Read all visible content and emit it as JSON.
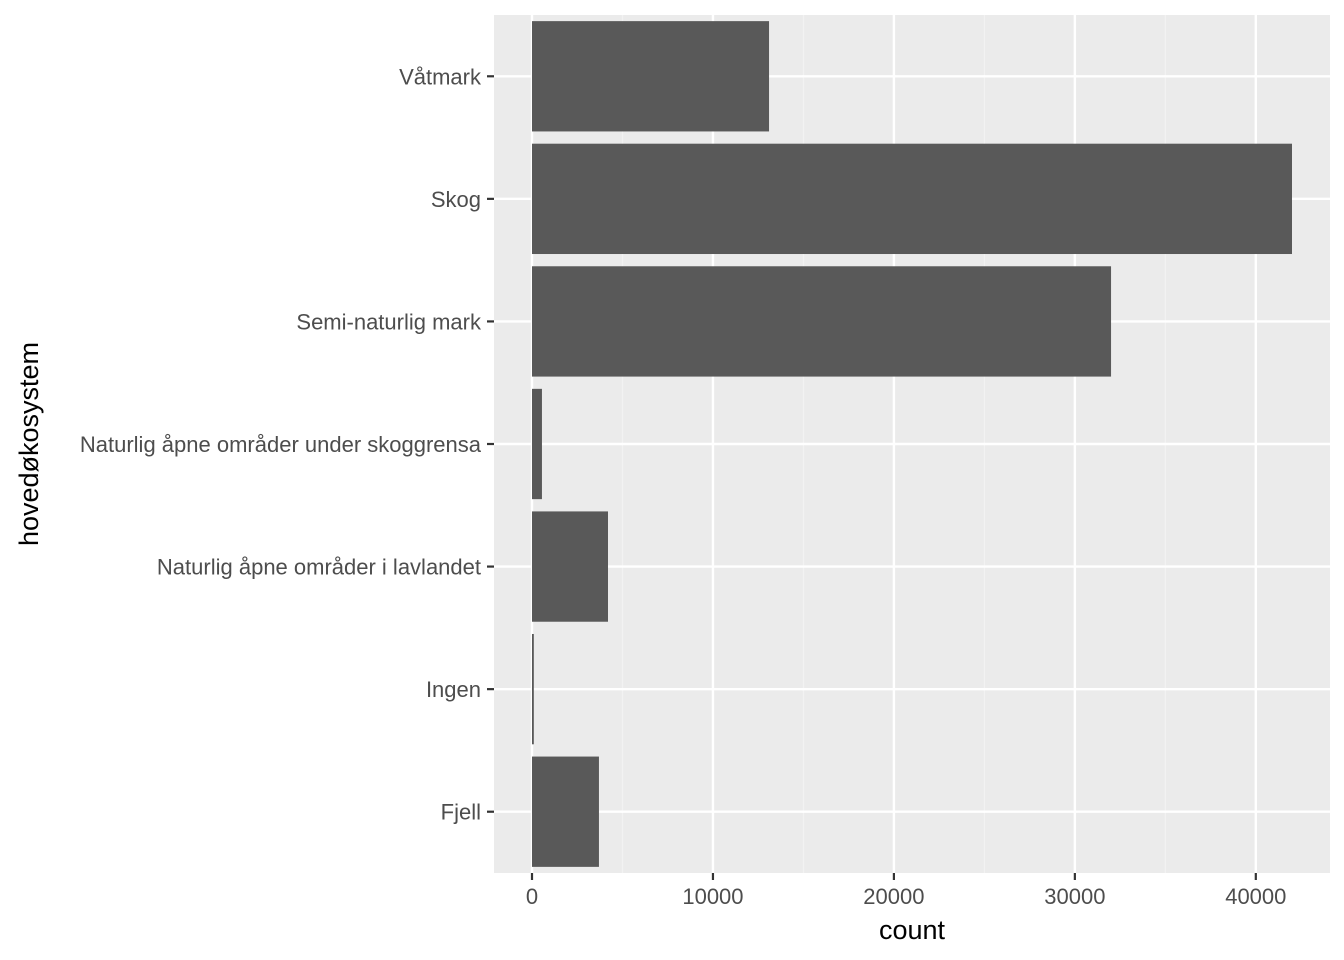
{
  "chart_data": {
    "type": "bar",
    "orientation": "horizontal",
    "categories": [
      "Fjell",
      "Ingen",
      "Naturlig åpne områder i lavlandet",
      "Naturlig åpne områder under skoggrensa",
      "Semi-naturlig mark",
      "Skog",
      "Våtmark"
    ],
    "values": [
      3700,
      100,
      4200,
      550,
      32000,
      42000,
      13100
    ],
    "xlabel": "count",
    "ylabel": "hovedøkosystem",
    "xlim": [
      -2100,
      44100
    ],
    "x_ticks": [
      0,
      10000,
      20000,
      30000,
      40000
    ],
    "x_tick_labels": [
      "0",
      "10000",
      "20000",
      "30000",
      "40000"
    ],
    "grid": true,
    "colors": {
      "bar": "#595959",
      "panel": "#ebebeb",
      "grid_major": "#ffffff",
      "grid_minor": "#f2f2f2",
      "tick_label": "#4d4d4d",
      "tick_mark": "#333333"
    }
  }
}
